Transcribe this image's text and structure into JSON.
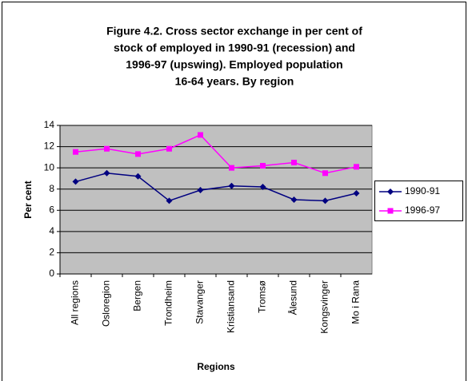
{
  "chart_data": {
    "type": "line",
    "title": [
      "Figure 4.2. Cross sector exchange in per cent of",
      "stock of employed in 1990-91 (recession) and",
      "1996-97 (upswing). Employed population",
      "16-64 years. By region"
    ],
    "xlabel": "Regions",
    "ylabel": "Per cent",
    "categories": [
      "All regions",
      "Osloregion",
      "Bergen",
      "Trondheim",
      "Stavanger",
      "Kristiansand",
      "Tromsø",
      "Ålesund",
      "Kongsvinger",
      "Mo i Rana"
    ],
    "series": [
      {
        "name": "1990-91",
        "color": "#000080",
        "marker": "diamond",
        "values": [
          8.7,
          9.5,
          9.2,
          6.9,
          7.9,
          8.3,
          8.2,
          7.0,
          6.9,
          7.6
        ]
      },
      {
        "name": "1996-97",
        "color": "#ff00ff",
        "marker": "square",
        "values": [
          11.5,
          11.8,
          11.3,
          11.8,
          13.1,
          10.0,
          10.2,
          10.5,
          9.5,
          10.1
        ]
      }
    ],
    "ylim": [
      0,
      14
    ],
    "yticks": [
      0,
      2,
      4,
      6,
      8,
      10,
      12,
      14
    ],
    "grid": true,
    "legend": "right"
  }
}
